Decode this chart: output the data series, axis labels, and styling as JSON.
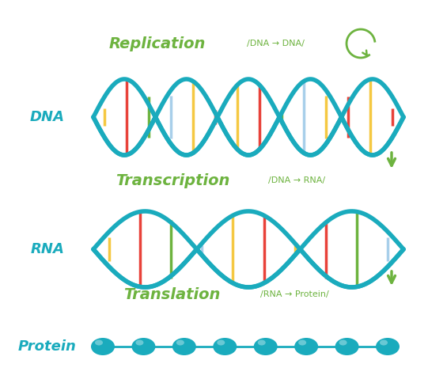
{
  "background_color": "#ffffff",
  "teal": "#1aabbd",
  "green": "#6db33f",
  "bar_colors": [
    "#f5c842",
    "#e8423a",
    "#6db33f",
    "#a8cfea",
    "#f5c842",
    "#e8423a"
  ],
  "figsize": [
    5.41,
    4.79
  ],
  "dpi": 100,
  "process_labels": [
    "Replication",
    "Transcription",
    "Translation"
  ],
  "process_subtexts": [
    "/DNA → DNA/",
    "/DNA → RNA/",
    "/RNA → Protein/"
  ],
  "section_labels": [
    "DNA",
    "RNA",
    "Protein"
  ],
  "label_fontsize": 13,
  "process_fontsize": 14,
  "sub_fontsize": 8
}
